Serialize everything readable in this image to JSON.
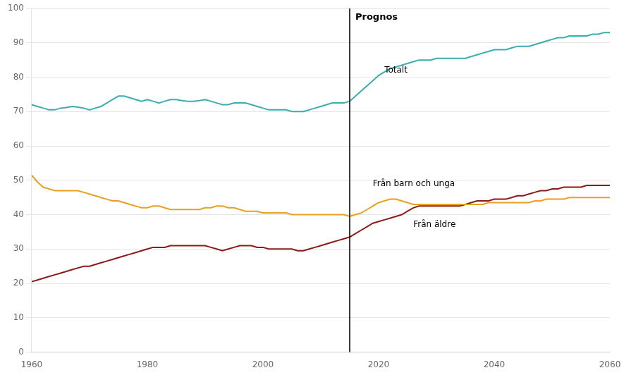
{
  "chart_data": {
    "type": "line",
    "x": [
      1960,
      1961,
      1962,
      1963,
      1964,
      1965,
      1966,
      1967,
      1968,
      1969,
      1970,
      1971,
      1972,
      1973,
      1974,
      1975,
      1976,
      1977,
      1978,
      1979,
      1980,
      1981,
      1982,
      1983,
      1984,
      1985,
      1986,
      1987,
      1988,
      1989,
      1990,
      1991,
      1992,
      1993,
      1994,
      1995,
      1996,
      1997,
      1998,
      1999,
      2000,
      2001,
      2002,
      2003,
      2004,
      2005,
      2006,
      2007,
      2008,
      2009,
      2010,
      2011,
      2012,
      2013,
      2014,
      2015,
      2016,
      2017,
      2018,
      2019,
      2020,
      2021,
      2022,
      2023,
      2024,
      2025,
      2026,
      2027,
      2028,
      2029,
      2030,
      2031,
      2032,
      2033,
      2034,
      2035,
      2036,
      2037,
      2038,
      2039,
      2040,
      2041,
      2042,
      2043,
      2044,
      2045,
      2046,
      2047,
      2048,
      2049,
      2050,
      2051,
      2052,
      2053,
      2054,
      2055,
      2056,
      2057,
      2058,
      2059,
      2060
    ],
    "series": [
      {
        "name": "Totalt",
        "color": "#3aadad",
        "values": [
          72,
          71.5,
          71,
          70.5,
          70.5,
          71,
          71.2,
          71.5,
          71.3,
          71.0,
          70.5,
          71.0,
          71.5,
          72.5,
          73.5,
          74.5,
          74.5,
          74.0,
          73.5,
          73.0,
          73.5,
          73.0,
          72.5,
          73.0,
          73.5,
          73.5,
          73.2,
          73.0,
          73.0,
          73.2,
          73.5,
          73.0,
          72.5,
          72.0,
          72.0,
          72.5,
          72.5,
          72.5,
          72.0,
          71.5,
          71.0,
          70.5,
          70.5,
          70.5,
          70.5,
          70.0,
          70.0,
          70.0,
          70.5,
          71.0,
          71.5,
          72.0,
          72.5,
          72.5,
          72.5,
          73.0,
          74.5,
          76.0,
          77.5,
          79.0,
          80.5,
          81.5,
          82.5,
          83.0,
          83.5,
          84.0,
          84.5,
          85.0,
          85.0,
          85.0,
          85.5,
          85.5,
          85.5,
          85.5,
          85.5,
          85.5,
          86.0,
          86.5,
          87.0,
          87.5,
          88.0,
          88.0,
          88.0,
          88.5,
          89.0,
          89.0,
          89.0,
          89.5,
          90.0,
          90.5,
          91.0,
          91.5,
          91.5,
          92.0,
          92.0,
          92.0,
          92.0,
          92.5,
          92.5,
          93.0,
          93.0
        ]
      },
      {
        "name": "Från barn och unga",
        "color": "#e8a020",
        "values": [
          51.5,
          49.5,
          48.0,
          47.5,
          47.0,
          47.0,
          47.0,
          47.0,
          47.0,
          46.5,
          46.0,
          45.5,
          45.0,
          44.5,
          44.0,
          44.0,
          43.5,
          43.0,
          42.5,
          42.0,
          42.0,
          42.5,
          42.5,
          42.0,
          41.5,
          41.5,
          41.5,
          41.5,
          41.5,
          41.5,
          42.0,
          42.0,
          42.5,
          42.5,
          42.0,
          42.0,
          41.5,
          41.0,
          41.0,
          41.0,
          40.5,
          40.5,
          40.5,
          40.5,
          40.5,
          40.0,
          40.0,
          40.0,
          40.0,
          40.0,
          40.0,
          40.0,
          40.0,
          40.0,
          40.0,
          39.5,
          40.0,
          40.5,
          41.5,
          42.5,
          43.5,
          44.0,
          44.5,
          44.5,
          44.0,
          43.5,
          43.0,
          43.0,
          43.0,
          43.0,
          43.0,
          43.0,
          43.0,
          43.0,
          43.0,
          43.0,
          43.0,
          43.0,
          43.0,
          43.5,
          43.5,
          43.5,
          43.5,
          43.5,
          43.5,
          43.5,
          43.5,
          44.0,
          44.0,
          44.5,
          44.5,
          44.5,
          44.5,
          45.0,
          45.0,
          45.0,
          45.0,
          45.0,
          45.0,
          45.0,
          45.0
        ]
      },
      {
        "name": "Från äldre",
        "color": "#8b1a1a",
        "values": [
          20.5,
          21.0,
          21.5,
          22.0,
          22.5,
          23.0,
          23.5,
          24.0,
          24.5,
          25.0,
          25.0,
          25.5,
          26.0,
          26.5,
          27.0,
          27.5,
          28.0,
          28.5,
          29.0,
          29.5,
          30.0,
          30.5,
          30.5,
          30.5,
          31.0,
          31.0,
          31.0,
          31.0,
          31.0,
          31.0,
          31.0,
          30.5,
          30.0,
          29.5,
          30.0,
          30.5,
          31.0,
          31.0,
          31.0,
          30.5,
          30.5,
          30.0,
          30.0,
          30.0,
          30.0,
          30.0,
          29.5,
          29.5,
          30.0,
          30.5,
          31.0,
          31.5,
          32.0,
          32.5,
          33.0,
          33.5,
          34.5,
          35.5,
          36.5,
          37.5,
          38.0,
          38.5,
          39.0,
          39.5,
          40.0,
          41.0,
          42.0,
          42.5,
          42.5,
          42.5,
          42.5,
          42.5,
          42.5,
          42.5,
          42.5,
          43.0,
          43.5,
          44.0,
          44.0,
          44.0,
          44.5,
          44.5,
          44.5,
          45.0,
          45.5,
          45.5,
          46.0,
          46.5,
          47.0,
          47.0,
          47.5,
          47.5,
          48.0,
          48.0,
          48.0,
          48.0,
          48.5,
          48.5,
          48.5,
          48.5,
          48.5
        ]
      }
    ],
    "annotations": [
      {
        "text": "Prognos",
        "x": 2015
      },
      {
        "text": "Totalt",
        "x": 2021,
        "y": 82
      },
      {
        "text": "Från barn och unga",
        "x": 2019,
        "y": 49
      },
      {
        "text": "Från äldre",
        "x": 2026,
        "y": 37
      }
    ],
    "xlim": [
      1960,
      2060
    ],
    "ylim": [
      0,
      100
    ],
    "xticks": [
      1960,
      1980,
      2000,
      2020,
      2040,
      2060
    ],
    "yticks": [
      0,
      10,
      20,
      30,
      40,
      50,
      60,
      70,
      80,
      90,
      100
    ],
    "grid": "y"
  }
}
